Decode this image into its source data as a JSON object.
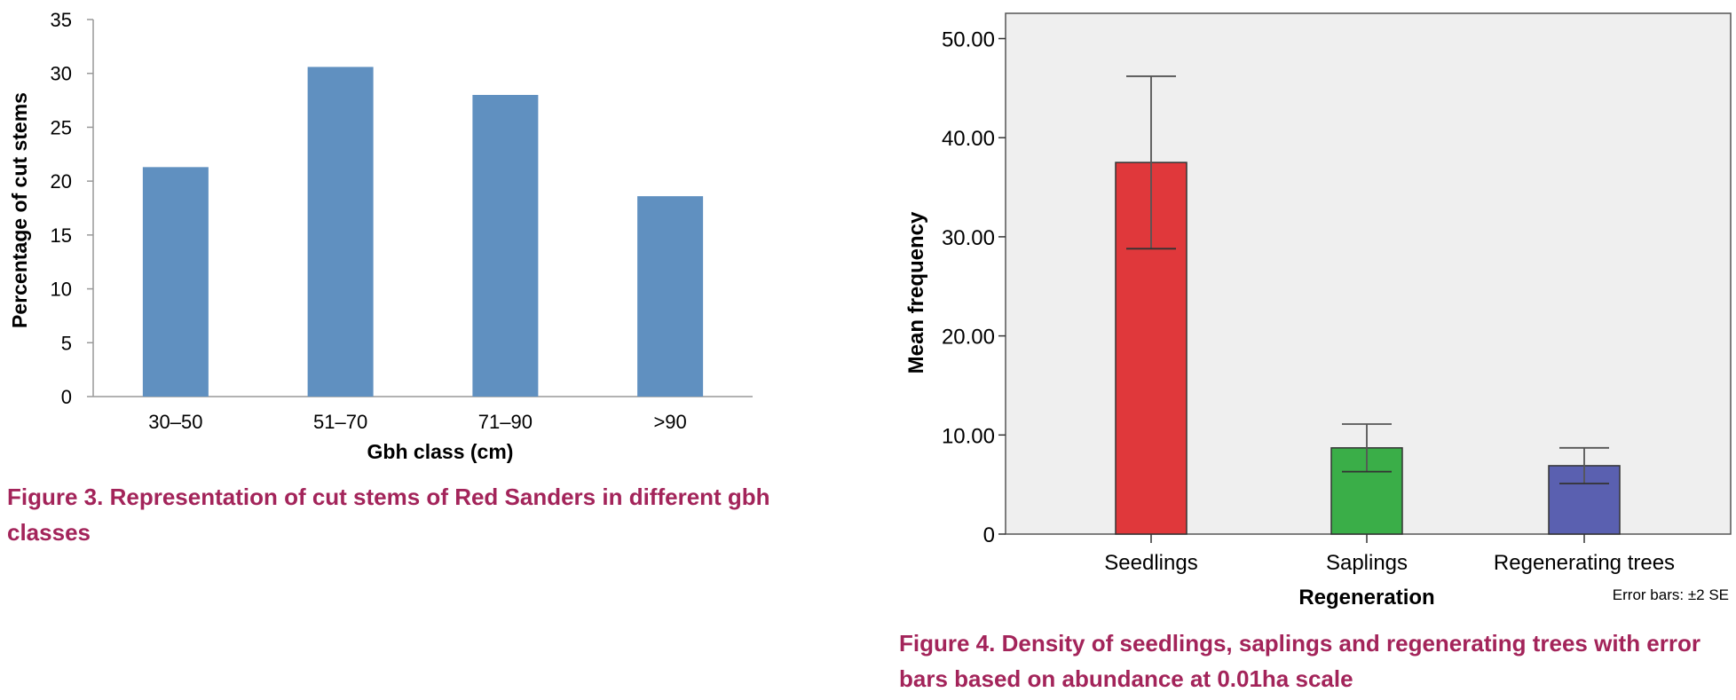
{
  "chart_data": [
    {
      "type": "bar",
      "title": "",
      "xlabel": "Gbh class (cm)",
      "ylabel": "Percentage of cut stems",
      "categories": [
        "30–50",
        "51–70",
        "71–90",
        ">90"
      ],
      "values": [
        21.3,
        30.6,
        28.0,
        18.6
      ],
      "ylim": [
        0,
        35
      ],
      "yticks": [
        "0",
        "5",
        "10",
        "15",
        "20",
        "25",
        "30",
        "35"
      ],
      "bar_color": "#6090c0",
      "caption": "Figure 3. Representation of cut stems of Red Sanders in different gbh classes"
    },
    {
      "type": "bar",
      "title": "",
      "xlabel": "Regeneration",
      "ylabel": "Mean frequency",
      "categories": [
        "Seedlings",
        "Saplings",
        "Regenerating trees"
      ],
      "values": [
        37.5,
        8.7,
        6.9
      ],
      "error_low": [
        28.8,
        6.3,
        5.1
      ],
      "error_high": [
        46.2,
        11.1,
        8.7
      ],
      "colors": [
        "#e0383b",
        "#3aae48",
        "#5a60b0"
      ],
      "ylim": [
        0,
        53
      ],
      "yticks": [
        "0",
        "10.00",
        "20.00",
        "30.00",
        "40.00",
        "50.00"
      ],
      "error_note": "Error bars: ±2 SE",
      "caption": "Figure 4. Density of seedlings, saplings and regenerating trees with error bars based on abundance at 0.01ha scale"
    }
  ]
}
